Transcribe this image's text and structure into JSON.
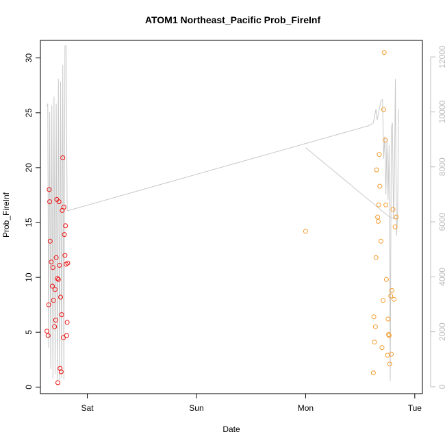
{
  "chart_data": {
    "type": "scatter",
    "title": "ATOM1 Northeast_Pacific Prob_FireInf",
    "xlabel": "Date",
    "ylabel": "Prob_FireInf",
    "x_ticks": [
      "Sat",
      "Sun",
      "Mon",
      "Tue"
    ],
    "xlim_days": [
      -0.43,
      3.07
    ],
    "ylim": [
      -0.6,
      31.6
    ],
    "y_ticks": [
      0,
      5,
      10,
      15,
      20,
      25,
      30
    ],
    "y2lim": [
      -250,
      12600
    ],
    "y2_ticks": [
      0,
      2000,
      4000,
      6000,
      8000,
      10000,
      12000
    ],
    "grid": false,
    "colors": {
      "points_early": "#ee1111",
      "points_late": "#f59a2a",
      "line": "#c8c8c8",
      "axis2": "#bbbbbb"
    },
    "series": [
      {
        "color": "points_early",
        "points": [
          [
            -0.37,
            5.1
          ],
          [
            -0.36,
            4.7
          ],
          [
            -0.355,
            7.5
          ],
          [
            -0.35,
            18.0
          ],
          [
            -0.345,
            16.9
          ],
          [
            -0.34,
            13.3
          ],
          [
            -0.33,
            11.4
          ],
          [
            -0.32,
            9.2
          ],
          [
            -0.315,
            10.9
          ],
          [
            -0.31,
            7.9
          ],
          [
            -0.3,
            5.5
          ],
          [
            -0.295,
            8.9
          ],
          [
            -0.29,
            6.1
          ],
          [
            -0.285,
            11.8
          ],
          [
            -0.28,
            17.1
          ],
          [
            -0.275,
            9.9
          ],
          [
            -0.27,
            0.4
          ],
          [
            -0.265,
            9.8
          ],
          [
            -0.26,
            16.9
          ],
          [
            -0.255,
            11.1
          ],
          [
            -0.25,
            1.7
          ],
          [
            -0.245,
            8.2
          ],
          [
            -0.24,
            1.4
          ],
          [
            -0.235,
            6.6
          ],
          [
            -0.23,
            16.1
          ],
          [
            -0.225,
            20.9
          ],
          [
            -0.22,
            4.5
          ],
          [
            -0.215,
            16.4
          ],
          [
            -0.21,
            13.9
          ],
          [
            -0.205,
            12.0
          ],
          [
            -0.2,
            14.7
          ],
          [
            -0.195,
            11.2
          ],
          [
            -0.19,
            4.7
          ],
          [
            -0.185,
            5.9
          ],
          [
            -0.18,
            11.3
          ]
        ]
      },
      {
        "color": "points_late",
        "points": [
          [
            2.0,
            14.2
          ],
          [
            2.62,
            1.3
          ],
          [
            2.625,
            6.4
          ],
          [
            2.63,
            4.1
          ],
          [
            2.64,
            5.5
          ],
          [
            2.645,
            11.8
          ],
          [
            2.65,
            19.8
          ],
          [
            2.66,
            15.5
          ],
          [
            2.665,
            15.1
          ],
          [
            2.67,
            16.6
          ],
          [
            2.675,
            21.2
          ],
          [
            2.68,
            18.3
          ],
          [
            2.69,
            13.3
          ],
          [
            2.7,
            3.6
          ],
          [
            2.71,
            7.9
          ],
          [
            2.715,
            25.3
          ],
          [
            2.72,
            30.5
          ],
          [
            2.73,
            22.5
          ],
          [
            2.735,
            16.6
          ],
          [
            2.74,
            9.8
          ],
          [
            2.75,
            2.9
          ],
          [
            2.755,
            6.2
          ],
          [
            2.76,
            4.8
          ],
          [
            2.765,
            4.7
          ],
          [
            2.77,
            2.1
          ],
          [
            2.78,
            8.3
          ],
          [
            2.785,
            3.0
          ],
          [
            2.79,
            8.8
          ],
          [
            2.8,
            16.2
          ],
          [
            2.81,
            8.0
          ],
          [
            2.82,
            14.6
          ],
          [
            2.83,
            15.5
          ]
        ]
      },
      {
        "type": "line",
        "color": "line",
        "axis": "right",
        "points": [
          [
            -0.37,
            10200
          ],
          [
            -0.362,
            10300
          ],
          [
            -0.355,
            1400
          ],
          [
            -0.345,
            10000
          ],
          [
            -0.335,
            650
          ],
          [
            -0.325,
            10250
          ],
          [
            -0.315,
            300
          ],
          [
            -0.305,
            10550
          ],
          [
            -0.295,
            450
          ],
          [
            -0.285,
            10300
          ],
          [
            -0.275,
            200
          ],
          [
            -0.265,
            11200
          ],
          [
            -0.255,
            250
          ],
          [
            -0.245,
            11100
          ],
          [
            -0.235,
            300
          ],
          [
            -0.225,
            11700
          ],
          [
            -0.215,
            250
          ],
          [
            -0.205,
            12400
          ],
          [
            -0.195,
            12400
          ],
          [
            -0.185,
            6400
          ],
          [
            2.58,
            9500
          ],
          [
            2.62,
            9600
          ],
          [
            2.635,
            9900
          ],
          [
            2.645,
            10100
          ],
          [
            2.655,
            9700
          ],
          [
            2.675,
            10100
          ],
          [
            2.69,
            10400
          ],
          [
            2.705,
            10450
          ],
          [
            2.715,
            8300
          ],
          [
            2.725,
            9100
          ],
          [
            2.735,
            7000
          ],
          [
            2.745,
            9000
          ],
          [
            2.755,
            6800
          ],
          [
            2.765,
            8800
          ],
          [
            2.775,
            200
          ],
          [
            2.785,
            9400
          ],
          [
            2.795,
            9600
          ],
          [
            2.805,
            6100
          ],
          [
            2.815,
            8000
          ],
          [
            2.822,
            11200
          ],
          [
            2.832,
            5500
          ],
          [
            2.842,
            6100
          ],
          [
            2.852,
            10100
          ]
        ]
      },
      {
        "type": "line",
        "color": "line",
        "axis": "right",
        "points": [
          [
            2.0,
            8700
          ],
          [
            2.76,
            6200
          ],
          [
            2.82,
            6100
          ]
        ]
      }
    ]
  }
}
